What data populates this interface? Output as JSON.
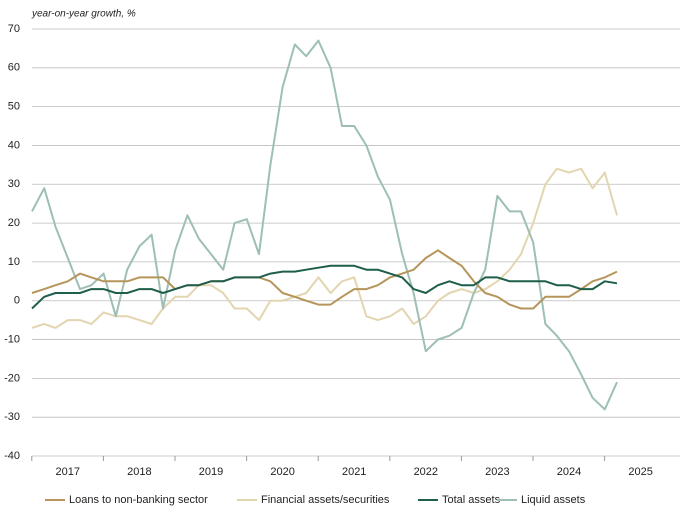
{
  "chart_data": {
    "type": "line",
    "y_label": "year-on-year growth, %",
    "x": [
      2016.5,
      2016.67,
      2016.83,
      2017,
      2017.17,
      2017.33,
      2017.5,
      2017.67,
      2017.83,
      2018,
      2018.17,
      2018.33,
      2018.5,
      2018.67,
      2018.83,
      2019,
      2019.17,
      2019.33,
      2019.5,
      2019.67,
      2019.83,
      2020,
      2020.17,
      2020.33,
      2020.5,
      2020.67,
      2020.83,
      2021,
      2021.17,
      2021.33,
      2021.5,
      2021.67,
      2021.83,
      2022,
      2022.17,
      2022.33,
      2022.5,
      2022.67,
      2022.83,
      2023,
      2023.17,
      2023.33,
      2023.5,
      2023.67,
      2023.83,
      2024,
      2024.17,
      2024.33,
      2024.5,
      2024.67
    ],
    "xlim": [
      2016.5,
      2025.55
    ],
    "xticks": [
      2017,
      2018,
      2019,
      2020,
      2021,
      2022,
      2023,
      2024,
      2025
    ],
    "ylim": [
      -40,
      70
    ],
    "yticks": [
      -40,
      -30,
      -20,
      -10,
      0,
      10,
      20,
      30,
      40,
      50,
      60,
      70
    ],
    "grid": true,
    "legend": "bottom",
    "series": [
      {
        "name": "Loans to non-banking sector",
        "color": "#b5955a",
        "values": [
          2,
          3,
          4,
          5,
          7,
          6,
          5,
          5,
          5,
          6,
          6,
          6,
          3,
          4,
          4,
          5,
          5,
          6,
          6,
          6,
          5,
          2,
          1,
          0,
          -1,
          -1,
          1,
          3,
          3,
          4,
          6,
          7,
          8,
          11,
          13,
          11,
          9,
          5,
          2,
          1,
          -1,
          -2,
          -2,
          1,
          1,
          1,
          3,
          5,
          6,
          7.5
        ]
      },
      {
        "name": "Financial assets/securities",
        "color": "#e3d5b0",
        "values": [
          -7,
          -6,
          -7,
          -5,
          -5,
          -6,
          -3,
          -4,
          -4,
          -5,
          -6,
          -2,
          1,
          1,
          4,
          4,
          2,
          -2,
          -2,
          -5,
          0,
          0,
          1,
          2,
          6,
          2,
          5,
          6,
          -4,
          -5,
          -4,
          -2,
          -6,
          -4,
          0,
          2,
          3,
          2,
          3,
          5,
          8,
          12,
          20,
          30,
          34,
          33,
          34,
          29,
          33,
          22
        ]
      },
      {
        "name": "Total assets",
        "color": "#1e5e4a",
        "values": [
          -2,
          1,
          2,
          2,
          2,
          3,
          3,
          2,
          2,
          3,
          3,
          2,
          3,
          4,
          4,
          5,
          5,
          6,
          6,
          6,
          7,
          7.5,
          7.5,
          8,
          8.5,
          9,
          9,
          9,
          8,
          8,
          7,
          6,
          3,
          2,
          4,
          5,
          4,
          4,
          6,
          6,
          5,
          5,
          5,
          5,
          4,
          4,
          3,
          3,
          5,
          4.5
        ]
      },
      {
        "name": "Liquid assets",
        "color": "#9dbfb5",
        "values": [
          23,
          29,
          19,
          11,
          3,
          4,
          7,
          -4,
          8,
          14,
          17,
          -2,
          13,
          22,
          16,
          12,
          8,
          20,
          21,
          12,
          35,
          55,
          66,
          63,
          67,
          60,
          45,
          45,
          40,
          32,
          26,
          12,
          2,
          -13,
          -10,
          -9,
          -7,
          2,
          8,
          27,
          23,
          23,
          15,
          -6,
          -9,
          -13,
          -19,
          -25,
          -28,
          -21
        ]
      }
    ]
  }
}
